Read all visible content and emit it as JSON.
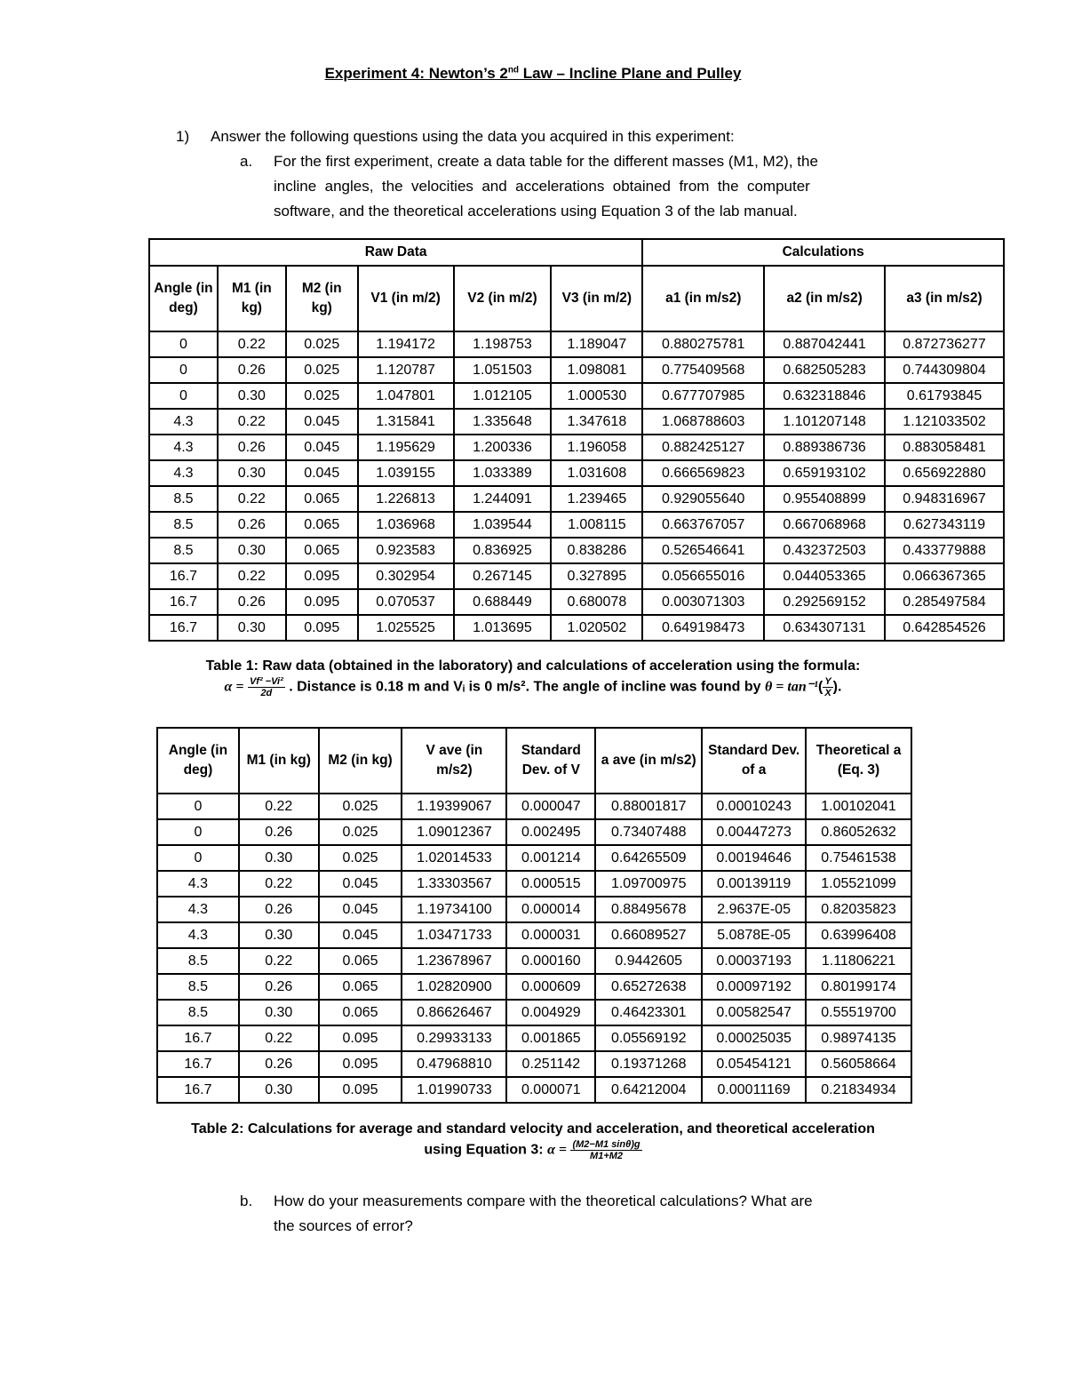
{
  "title": {
    "prefix": "Experiment 4: Newton’s 2",
    "sup": "nd",
    "suffix": " Law – Incline Plane and Pulley"
  },
  "q1": {
    "num": "1)",
    "text": "Answer the following questions using the data you acquired in this experiment:"
  },
  "qa": {
    "letter": "a.",
    "line1": "For the first experiment, create a data table for the different masses (M1, M2), the",
    "line2": "incline  angles,  the  velocities  and  accelerations  obtained  from  the  computer",
    "line3": "software, and the theoretical accelerations using Equation 3 of the lab manual."
  },
  "table1": {
    "groups": [
      "Raw Data",
      "Calculations"
    ],
    "headers": [
      "Angle (in deg)",
      "M1 (in kg)",
      "M2 (in kg)",
      "V1 (in m/2)",
      "V2 (in m/2)",
      "V3 (in m/2)",
      "a1 (in m/s2)",
      "a2 (in m/s2)",
      "a3 (in m/s2)"
    ],
    "rows": [
      [
        "0",
        "0.22",
        "0.025",
        "1.194172",
        "1.198753",
        "1.189047",
        "0.880275781",
        "0.887042441",
        "0.872736277"
      ],
      [
        "0",
        "0.26",
        "0.025",
        "1.120787",
        "1.051503",
        "1.098081",
        "0.775409568",
        "0.682505283",
        "0.744309804"
      ],
      [
        "0",
        "0.30",
        "0.025",
        "1.047801",
        "1.012105",
        "1.000530",
        "0.677707985",
        "0.632318846",
        "0.61793845"
      ],
      [
        "4.3",
        "0.22",
        "0.045",
        "1.315841",
        "1.335648",
        "1.347618",
        "1.068788603",
        "1.101207148",
        "1.121033502"
      ],
      [
        "4.3",
        "0.26",
        "0.045",
        "1.195629",
        "1.200336",
        "1.196058",
        "0.882425127",
        "0.889386736",
        "0.883058481"
      ],
      [
        "4.3",
        "0.30",
        "0.045",
        "1.039155",
        "1.033389",
        "1.031608",
        "0.666569823",
        "0.659193102",
        "0.656922880"
      ],
      [
        "8.5",
        "0.22",
        "0.065",
        "1.226813",
        "1.244091",
        "1.239465",
        "0.929055640",
        "0.955408899",
        "0.948316967"
      ],
      [
        "8.5",
        "0.26",
        "0.065",
        "1.036968",
        "1.039544",
        "1.008115",
        "0.663767057",
        "0.667068968",
        "0.627343119"
      ],
      [
        "8.5",
        "0.30",
        "0.065",
        "0.923583",
        "0.836925",
        "0.838286",
        "0.526546641",
        "0.432372503",
        "0.433779888"
      ],
      [
        "16.7",
        "0.22",
        "0.095",
        "0.302954",
        "0.267145",
        "0.327895",
        "0.056655016",
        "0.044053365",
        "0.066367365"
      ],
      [
        "16.7",
        "0.26",
        "0.095",
        "0.070537",
        "0.688449",
        "0.680078",
        "0.003071303",
        "0.292569152",
        "0.285497584"
      ],
      [
        "16.7",
        "0.30",
        "0.095",
        "1.025525",
        "1.013695",
        "1.020502",
        "0.649198473",
        "0.634307131",
        "0.642854526"
      ]
    ]
  },
  "caption1": {
    "line1": "Table 1: Raw data (obtained in the laboratory) and calculations of acceleration using the formula:",
    "alpha": "α =",
    "num": "Vf² −Vi²",
    "den": "2d",
    "mid": ". Distance is 0.18 m and Vᵢ is 0 m/s². The angle of incline was found by",
    "theta": "θ = tan⁻¹",
    "ynum": "Y",
    "xden": "X",
    "end": ")."
  },
  "table2": {
    "headers": [
      "Angle (in deg)",
      "M1 (in kg)",
      "M2 (in kg)",
      "V ave (in m/s2)",
      "Standard Dev. of V",
      "a ave (in m/s2)",
      "Standard Dev. of a",
      "Theoretical a (Eq. 3)"
    ],
    "rows": [
      [
        "0",
        "0.22",
        "0.025",
        "1.19399067",
        "0.000047",
        "0.88001817",
        "0.00010243",
        "1.00102041"
      ],
      [
        "0",
        "0.26",
        "0.025",
        "1.09012367",
        "0.002495",
        "0.73407488",
        "0.00447273",
        "0.86052632"
      ],
      [
        "0",
        "0.30",
        "0.025",
        "1.02014533",
        "0.001214",
        "0.64265509",
        "0.00194646",
        "0.75461538"
      ],
      [
        "4.3",
        "0.22",
        "0.045",
        "1.33303567",
        "0.000515",
        "1.09700975",
        "0.00139119",
        "1.05521099"
      ],
      [
        "4.3",
        "0.26",
        "0.045",
        "1.19734100",
        "0.000014",
        "0.88495678",
        "2.9637E-05",
        "0.82035823"
      ],
      [
        "4.3",
        "0.30",
        "0.045",
        "1.03471733",
        "0.000031",
        "0.66089527",
        "5.0878E-05",
        "0.63996408"
      ],
      [
        "8.5",
        "0.22",
        "0.065",
        "1.23678967",
        "0.000160",
        "0.9442605",
        "0.00037193",
        "1.11806221"
      ],
      [
        "8.5",
        "0.26",
        "0.065",
        "1.02820900",
        "0.000609",
        "0.65272638",
        "0.00097192",
        "0.80199174"
      ],
      [
        "8.5",
        "0.30",
        "0.065",
        "0.86626467",
        "0.004929",
        "0.46423301",
        "0.00582547",
        "0.55519700"
      ],
      [
        "16.7",
        "0.22",
        "0.095",
        "0.29933133",
        "0.001865",
        "0.05569192",
        "0.00025035",
        "0.98974135"
      ],
      [
        "16.7",
        "0.26",
        "0.095",
        "0.47968810",
        "0.251142",
        "0.19371268",
        "0.05454121",
        "0.56058664"
      ],
      [
        "16.7",
        "0.30",
        "0.095",
        "1.01990733",
        "0.000071",
        "0.64212004",
        "0.00011169",
        "0.21834934"
      ]
    ]
  },
  "caption2": {
    "line1": "Table 2: Calculations for average and standard velocity and acceleration, and theoretical acceleration",
    "line2": "using Equation 3:",
    "alpha": "α =",
    "num": "(M2−M1 sinθ)g",
    "den": "M1+M2"
  },
  "qb": {
    "letter": "b.",
    "line1": "How do your measurements compare with the theoretical calculations? What are",
    "line2": "the sources of error?"
  }
}
